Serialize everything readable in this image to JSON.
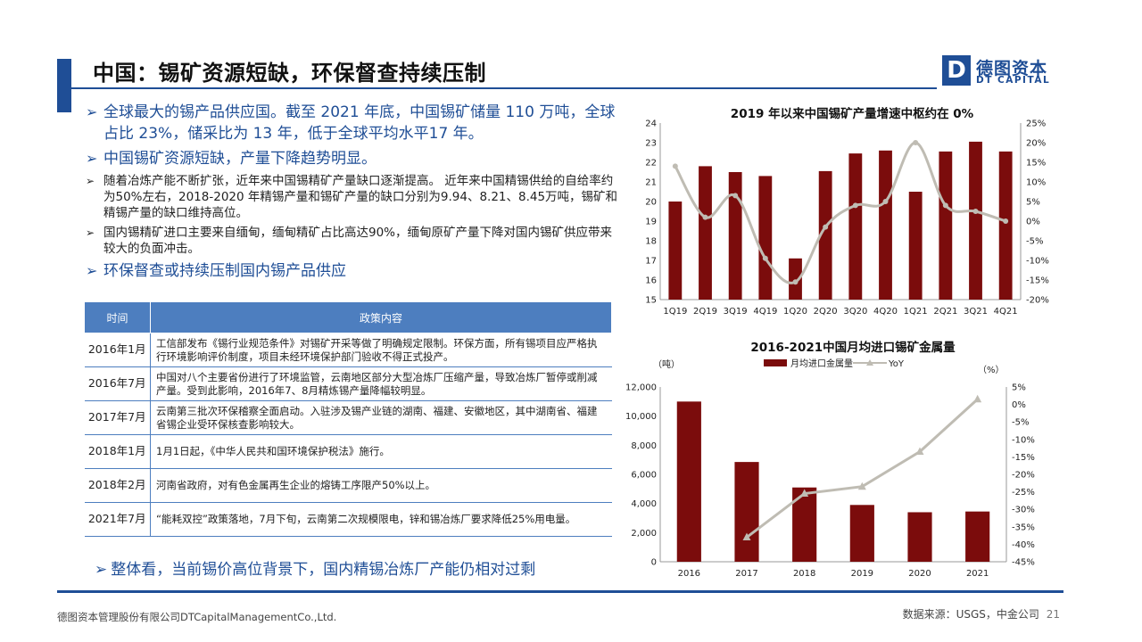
{
  "header": {
    "title": "中国：锡矿资源短缺，环保督查持续压制",
    "logo_letter": "D",
    "logo_cn": "德图资本",
    "logo_en": "DT CAPITAL"
  },
  "bullets": [
    {
      "level": "big",
      "text": "全球最大的锡产品供应国。截至 2021 年底，中国锡矿储量 110 万吨，全球占比 23%，储采比为 13 年，低于全球平均水平17 年。"
    },
    {
      "level": "big",
      "text": "中国锡矿资源短缺，产量下降趋势明显。"
    },
    {
      "level": "small",
      "text": "随着冶炼产能不断扩张，近年来中国锡精矿产量缺口逐渐提高。 近年来中国精锡供给的自给率约为50%左右，2018-2020 年精锡产量和锡矿产量的缺口分别为9.94、8.21、8.45万吨，锡矿和精锡产量的缺口维持高位。"
    },
    {
      "level": "small",
      "text": "国内锡精矿进口主要来自缅甸，缅甸精矿占比高达90%，缅甸原矿产量下降对国内锡矿供应带来较大的负面冲击。"
    },
    {
      "level": "big",
      "text": "环保督查或持续压制国内锡产品供应"
    }
  ],
  "bullet_marker": "➢",
  "table": {
    "headers": [
      "时间",
      "政策内容"
    ],
    "rows": [
      {
        "year": "2016年1月",
        "content": "工信部发布《锡行业规范条件》对锡矿开采等做了明确规定限制。环保方面，所有锡项目应严格执行环境影响评价制度，项目未经环境保护部门验收不得正式投产。"
      },
      {
        "year": "2016年7月",
        "content": "中国对八个主要省份进行了环境监管，云南地区部分大型冶炼厂压缩产量，导致冶炼厂暂停或削减产量。受到此影响，2016年7、8月精炼锡产量降幅较明显。"
      },
      {
        "year": "2017年7月",
        "content": "云南第三批次环保稽察全面启动。入驻涉及锡产业链的湖南、福建、安徽地区，其中湖南省、福建省锡企业受环保核查影响较大。"
      },
      {
        "year": "2018年1月",
        "content": "1月1日起，《中华人民共和国环境保护税法》施行。"
      },
      {
        "year": "2018年2月",
        "content": "河南省政府，对有色金属再生企业的熔铸工序限产50%以上。"
      },
      {
        "year": "2021年7月",
        "content": "“能耗双控”政策落地，7月下旬，云南第二次规模限电，锌和锡冶炼厂要求降低25%用电量。"
      }
    ]
  },
  "bottom_note": "整体看，当前锡价高位背景下，国内精锡冶炼厂产能仍相对过剩",
  "footer": {
    "company": "德图资本管理股份有限公司DTCapitalManagementCo.,Ltd.",
    "source": "数据来源：USGS，中金公司",
    "page": "21"
  },
  "colors": {
    "brand": "#1f4e96",
    "table_header": "#4d7ebf",
    "bar": "#7b0c0c",
    "line": "#bfbcb3"
  },
  "chart_data": [
    {
      "type": "bar",
      "title": "2019 年以来中国锡矿产量增速中枢约在 0%",
      "categories": [
        "1Q19",
        "2Q19",
        "3Q19",
        "4Q19",
        "1Q20",
        "2Q20",
        "3Q20",
        "4Q20",
        "1Q21",
        "2Q21",
        "3Q21",
        "4Q21"
      ],
      "series": [
        {
          "type": "bar",
          "axis": "left",
          "values": [
            20.0,
            21.8,
            21.5,
            21.3,
            17.1,
            21.55,
            22.45,
            22.6,
            20.5,
            22.55,
            23.05,
            22.55
          ]
        },
        {
          "type": "line",
          "axis": "right",
          "values": [
            14,
            1,
            6.5,
            -9.5,
            -15.5,
            -1.5,
            4,
            5,
            20,
            4,
            2.5,
            0
          ]
        }
      ],
      "y_left": {
        "min": 15,
        "max": 24,
        "ticks": [
          24,
          23,
          22,
          21,
          20,
          19,
          18,
          17,
          16,
          15
        ]
      },
      "y_right": {
        "min": -20,
        "max": 25,
        "ticks": [
          "25%",
          "20%",
          "15%",
          "10%",
          "5%",
          "0%",
          "-5%",
          "-10%",
          "-15%",
          "-20%"
        ]
      },
      "grid": false
    },
    {
      "type": "bar",
      "title": "2016-2021中国月均进口锡矿金属量",
      "left_unit": "（吨）",
      "right_unit": "（%）",
      "legend": [
        "月均进口金属量",
        "YoY"
      ],
      "legend_position": "top",
      "categories": [
        "2016",
        "2017",
        "2018",
        "2019",
        "2020",
        "2021"
      ],
      "series": [
        {
          "name": "月均进口金属量",
          "type": "bar",
          "axis": "left",
          "values": [
            11000,
            6850,
            5100,
            3900,
            3400,
            3450
          ]
        },
        {
          "name": "YoY",
          "type": "line",
          "axis": "right",
          "values": [
            null,
            -38,
            -25.5,
            -23.5,
            -13.5,
            1.5
          ]
        }
      ],
      "y_left": {
        "min": 0,
        "max": 12000,
        "ticks": [
          "12,000",
          "10,000",
          "8,000",
          "6,000",
          "4,000",
          "2,000",
          "0"
        ]
      },
      "y_right": {
        "min": -45,
        "max": 5,
        "ticks": [
          "5%",
          "0%",
          "-5%",
          "-10%",
          "-15%",
          "-20%",
          "-25%",
          "-30%",
          "-35%",
          "-40%",
          "-45%"
        ]
      },
      "grid": false
    }
  ]
}
